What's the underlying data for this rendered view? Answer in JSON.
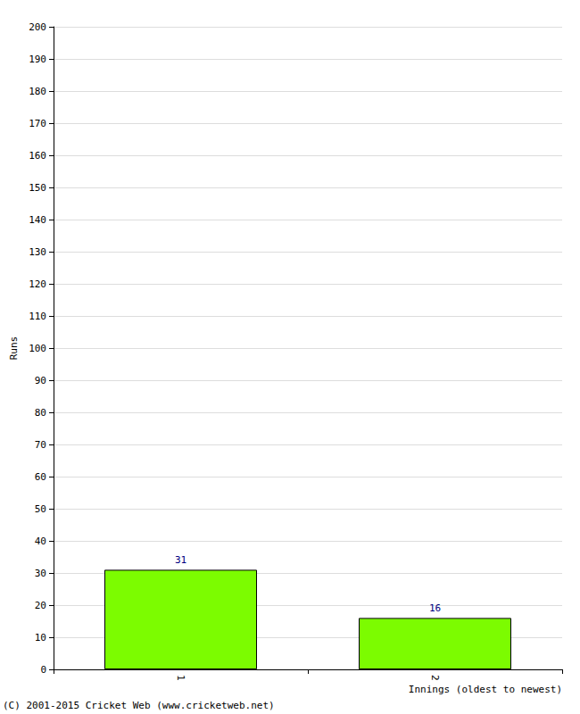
{
  "chart_data": {
    "type": "bar",
    "categories": [
      "1",
      "2"
    ],
    "values": [
      31,
      16
    ],
    "color": "#7cfc00",
    "ylim": [
      0,
      200
    ],
    "yticks": [
      0,
      10,
      20,
      30,
      40,
      50,
      60,
      70,
      80,
      90,
      100,
      110,
      120,
      130,
      140,
      150,
      160,
      170,
      180,
      190,
      200
    ],
    "grid": true,
    "data_labels": true,
    "ylabel": "Runs",
    "xlabel": "Innings (oldest to newest)",
    "annotations": [
      "(C) 2001-2015 Cricket Web (www.cricketweb.net)"
    ]
  }
}
